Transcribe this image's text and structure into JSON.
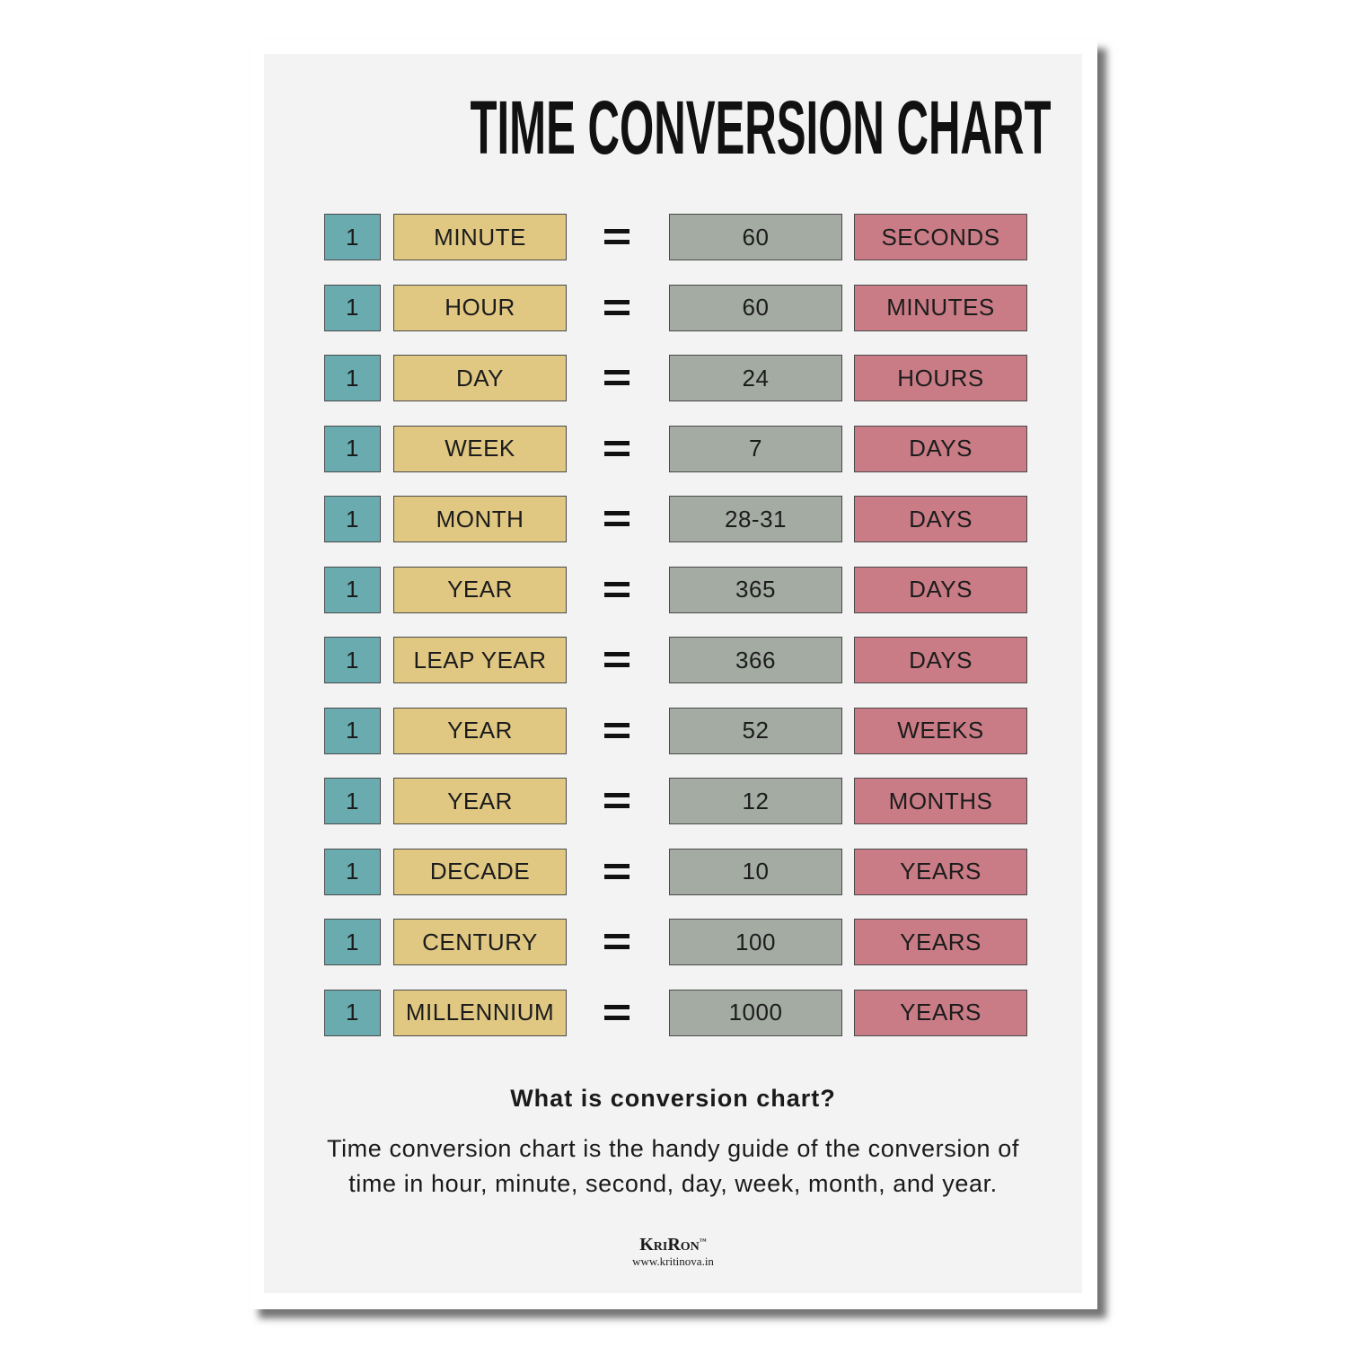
{
  "header": {
    "title": "TIME CONVERSION CHART"
  },
  "table": {
    "rows": [
      [
        1,
        "MINUTE",
        60,
        "SECONDS"
      ],
      [
        1,
        "HOUR",
        60,
        "MINUTES"
      ],
      [
        1,
        "DAY",
        24,
        "HOURS"
      ],
      [
        1,
        "WEEK",
        7,
        "DAYS"
      ],
      [
        1,
        "MONTH",
        "28-31",
        "DAYS"
      ],
      [
        1,
        "YEAR",
        365,
        "DAYS"
      ],
      [
        1,
        "LEAP YEAR",
        366,
        "DAYS"
      ],
      [
        1,
        "YEAR",
        52,
        "WEEKS"
      ],
      [
        1,
        "YEAR",
        12,
        "MONTHS"
      ],
      [
        1,
        "DECADE",
        10,
        "YEARS"
      ],
      [
        1,
        "CENTURY",
        100,
        "YEARS"
      ],
      [
        1,
        "MILLENNIUM",
        1000,
        "YEARS"
      ]
    ]
  },
  "footer": {
    "heading": "What is conversion chart?",
    "lines": [
      "Time conversion chart is the handy guide of the conversion of",
      "time in hour, minute, second, day, week, month, and year."
    ],
    "brand": "KriRon",
    "trademark": "™",
    "url": "www.kritinova.in"
  }
}
